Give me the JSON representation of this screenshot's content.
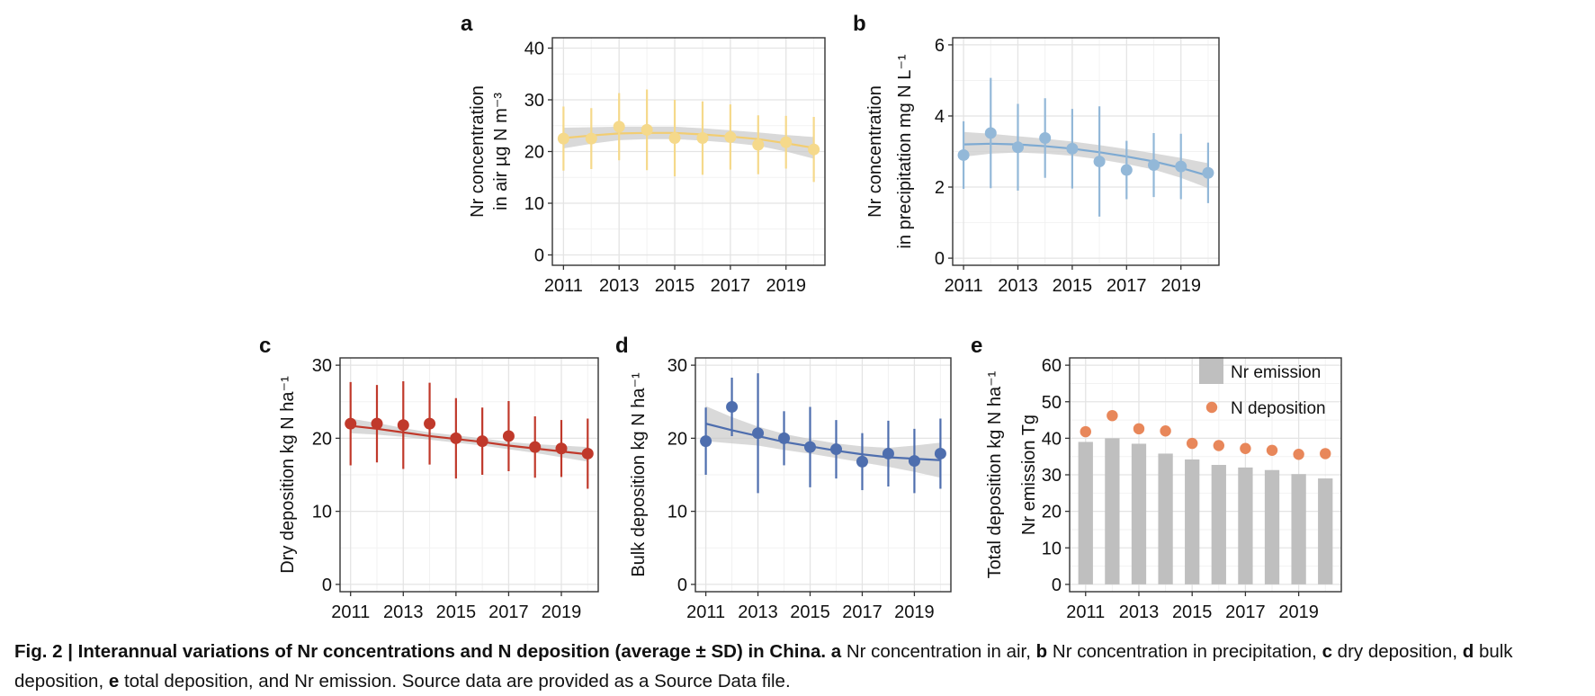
{
  "caption": {
    "fig_label": "Fig. 2 | Interannual variations of Nr concentrations and N deposition (average ± SD) in China.",
    "a_key": "a",
    "a_text": " Nr concentration in air, ",
    "b_key": "b",
    "b_text": " Nr concentration in precipitation, ",
    "c_key": "c",
    "c_text": " dry deposition, ",
    "d_key": "d",
    "d_text": " bulk deposition, ",
    "e_key": "e",
    "e_text": " total deposition, and Nr emission. Source data are provided as a Source Data file."
  },
  "chart_data": [
    {
      "panel": "a",
      "type": "scatter",
      "ylabel_lines": [
        "Nr concentration",
        "in air   µg N m⁻³"
      ],
      "x": [
        2011,
        2012,
        2013,
        2014,
        2015,
        2016,
        2017,
        2018,
        2019,
        2020
      ],
      "y": [
        22.5,
        22.5,
        24.8,
        24.2,
        22.6,
        22.6,
        22.8,
        21.3,
        21.8,
        20.4
      ],
      "sd": [
        6.2,
        5.9,
        6.5,
        7.8,
        7.4,
        7.1,
        6.3,
        5.7,
        5.1,
        6.3
      ],
      "trend": [
        22.6,
        23.1,
        23.5,
        23.6,
        23.6,
        23.3,
        22.9,
        22.4,
        21.6,
        20.7
      ],
      "ci": [
        2.0,
        1.6,
        1.3,
        1.2,
        1.2,
        1.2,
        1.2,
        1.3,
        1.6,
        2.1
      ],
      "xlim": [
        2010.6,
        2020.4
      ],
      "ylim": [
        -2,
        42
      ],
      "yticks": [
        0,
        10,
        20,
        30,
        40
      ],
      "xticks": [
        2011,
        2013,
        2015,
        2017,
        2019
      ],
      "color": "#f5d98b",
      "line_color": "#f2cd72"
    },
    {
      "panel": "b",
      "type": "scatter",
      "ylabel_lines": [
        "Nr concentration",
        "in precipitation   mg N L⁻¹"
      ],
      "x": [
        2011,
        2012,
        2013,
        2014,
        2015,
        2016,
        2017,
        2018,
        2019,
        2020
      ],
      "y": [
        2.9,
        3.52,
        3.12,
        3.38,
        3.08,
        2.72,
        2.48,
        2.62,
        2.58,
        2.4
      ],
      "sd": [
        0.95,
        1.55,
        1.22,
        1.12,
        1.12,
        1.55,
        0.82,
        0.9,
        0.92,
        0.85
      ],
      "trend": [
        3.2,
        3.22,
        3.2,
        3.15,
        3.08,
        2.98,
        2.86,
        2.72,
        2.54,
        2.32
      ],
      "ci": [
        0.35,
        0.28,
        0.23,
        0.21,
        0.2,
        0.2,
        0.21,
        0.23,
        0.28,
        0.35
      ],
      "xlim": [
        2010.6,
        2020.4
      ],
      "ylim": [
        -0.2,
        6.2
      ],
      "yticks": [
        0,
        2,
        4,
        6
      ],
      "xticks": [
        2011,
        2013,
        2015,
        2017,
        2019
      ],
      "color": "#93b8d8",
      "line_color": "#7eaad2"
    },
    {
      "panel": "c",
      "type": "scatter",
      "ylabel_lines": [
        "Dry deposition  kg N ha⁻¹"
      ],
      "x": [
        2011,
        2012,
        2013,
        2014,
        2015,
        2016,
        2017,
        2018,
        2019,
        2020
      ],
      "y": [
        22.0,
        22.0,
        21.8,
        22.0,
        20.0,
        19.6,
        20.3,
        18.8,
        18.6,
        17.9
      ],
      "sd": [
        5.7,
        5.3,
        6.0,
        5.6,
        5.5,
        4.6,
        4.8,
        4.2,
        3.9,
        4.8
      ],
      "trend": [
        21.7,
        21.3,
        20.8,
        20.3,
        19.9,
        19.5,
        19.0,
        18.6,
        18.2,
        17.8
      ],
      "ci": [
        1.0,
        0.8,
        0.6,
        0.5,
        0.5,
        0.5,
        0.5,
        0.6,
        0.8,
        1.0
      ],
      "xlim": [
        2010.6,
        2020.4
      ],
      "ylim": [
        -1,
        31
      ],
      "yticks": [
        0,
        10,
        20,
        30
      ],
      "xticks": [
        2011,
        2013,
        2015,
        2017,
        2019
      ],
      "color": "#c0392b",
      "line_color": "#c0392b"
    },
    {
      "panel": "d",
      "type": "scatter",
      "ylabel_lines": [
        "Bulk deposition  kg N ha⁻¹"
      ],
      "x": [
        2011,
        2012,
        2013,
        2014,
        2015,
        2016,
        2017,
        2018,
        2019,
        2020
      ],
      "y": [
        19.6,
        24.3,
        20.7,
        20.0,
        18.8,
        18.5,
        16.8,
        17.9,
        16.9,
        17.9
      ],
      "sd": [
        4.6,
        4.0,
        8.2,
        3.7,
        5.5,
        4.0,
        3.9,
        4.5,
        4.4,
        4.8
      ],
      "trend": [
        22.0,
        21.1,
        20.3,
        19.5,
        18.9,
        18.3,
        17.8,
        17.4,
        17.2,
        17.0
      ],
      "ci": [
        2.4,
        1.8,
        1.3,
        1.1,
        1.0,
        1.0,
        1.1,
        1.3,
        1.8,
        2.4
      ],
      "xlim": [
        2010.6,
        2020.4
      ],
      "ylim": [
        -1,
        31
      ],
      "yticks": [
        0,
        10,
        20,
        30
      ],
      "xticks": [
        2011,
        2013,
        2015,
        2017,
        2019
      ],
      "color": "#4e6eae",
      "line_color": "#4e6eae"
    },
    {
      "panel": "e",
      "type": "bar",
      "ylabel_lines": [
        "Total deposition   kg N ha⁻¹",
        "Nr emission   Tg"
      ],
      "x": [
        2011,
        2012,
        2013,
        2014,
        2015,
        2016,
        2017,
        2018,
        2019,
        2020
      ],
      "series": [
        {
          "name": "Nr emission",
          "type": "bar",
          "values": [
            39.0,
            40.0,
            38.5,
            35.8,
            34.2,
            32.7,
            32.0,
            31.3,
            30.2,
            29.0
          ],
          "color": "#bfbfbf"
        },
        {
          "name": "N deposition",
          "type": "point",
          "values": [
            41.8,
            46.2,
            42.6,
            42.0,
            38.6,
            38.0,
            37.2,
            36.7,
            35.6,
            35.8
          ],
          "color": "#e8875a"
        }
      ],
      "xlim": [
        2010.4,
        2020.6
      ],
      "ylim": [
        -2,
        62
      ],
      "yticks": [
        0,
        10,
        20,
        30,
        40,
        50,
        60
      ],
      "xticks": [
        2011,
        2013,
        2015,
        2017,
        2019
      ],
      "legend_position": "top-right"
    }
  ]
}
